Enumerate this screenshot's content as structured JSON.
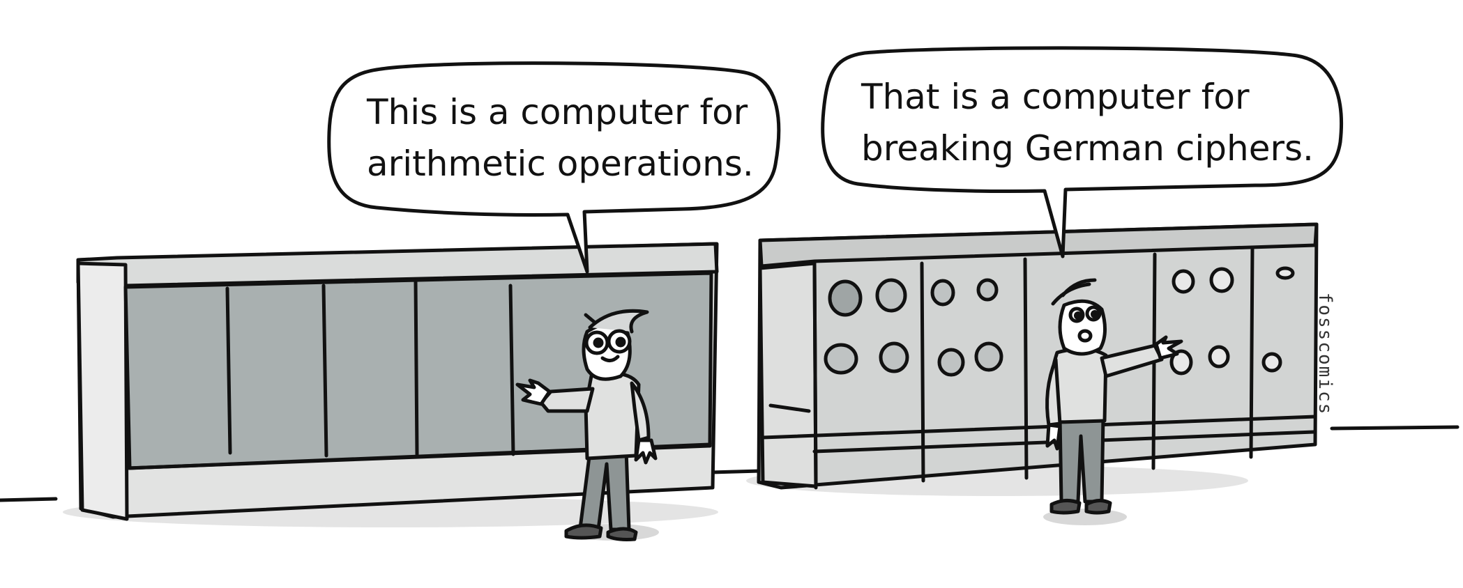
{
  "panel": {
    "left_speech": {
      "line1": "This is a computer for",
      "line2": "arithmetic operations."
    },
    "right_speech": {
      "line1": "That is a computer for",
      "line2": "breaking German ciphers."
    },
    "signature": "fosscomics"
  },
  "colors": {
    "ink": "#111111",
    "shade_light": "#e2e3e2",
    "shade_mid": "#c8caca",
    "shade_dark": "#a9b0b0",
    "background": "#ffffff"
  }
}
